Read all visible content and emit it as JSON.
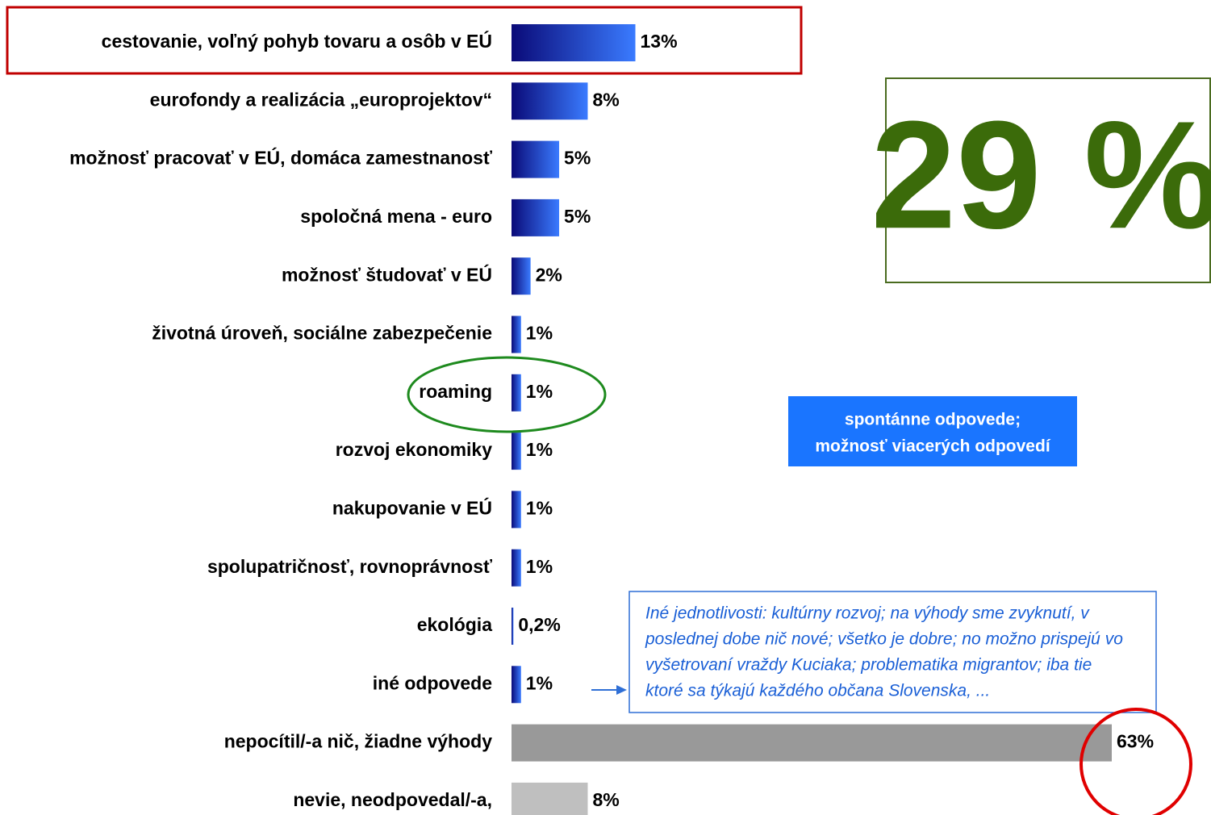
{
  "chart_data": {
    "type": "bar",
    "orientation": "horizontal",
    "categories": [
      "cestovanie, voľný pohyb tovaru a  osôb v  EÚ",
      "eurofondy a realizácia „europrojektov“",
      "možnosť pracovať v  EÚ, domáca zamestnanosť",
      "spoločná mena - euro",
      "možnosť študovať v  EÚ",
      "životná úroveň,  sociálne zabezpečenie",
      "roaming",
      "rozvoj ekonomiky",
      "nakupovanie v  EÚ",
      "spolupatričnosť, rovnoprávnosť",
      "ekológia",
      "iné odpovede",
      "nepocítil/-a nič, žiadne výhody",
      "nevie, neodpovedal/-a,"
    ],
    "values": [
      13,
      8,
      5,
      5,
      2,
      1,
      1,
      1,
      1,
      1,
      0.2,
      1,
      63,
      8
    ],
    "value_labels": [
      "13%",
      "8%",
      "5%",
      "5%",
      "2%",
      "1%",
      "1%",
      "1%",
      "1%",
      "1%",
      "0,2%",
      "1%",
      "63%",
      "8%"
    ],
    "colors": [
      "#3a7bff",
      "#3a7bff",
      "#3a7bff",
      "#3a7bff",
      "#3a7bff",
      "#3a7bff",
      "#3a7bff",
      "#3a7bff",
      "#3a7bff",
      "#3a7bff",
      "#3a7bff",
      "#3a7bff",
      "#999999",
      "#bfbfbf"
    ],
    "gradient": [
      true,
      true,
      true,
      true,
      true,
      true,
      true,
      true,
      true,
      true,
      true,
      true,
      false,
      false
    ],
    "gradient_from": "#0a0a78",
    "annotations": {
      "headline": "29 %",
      "note_box": [
        "spontánne odpovede;",
        "možnosť viacerých odpovedí"
      ],
      "other_answers": [
        "Iné jednotlivosti: kultúrny rozvoj;  na výhody sme zvyknutí, v",
        "poslednej dobe nič nové; všetko je dobre; no možno prispejú vo",
        "vyšetrovaní vraždy Kuciaka; problematika migrantov; iba tie",
        "ktoré sa týkajú každého občana Slovenska, ..."
      ]
    }
  }
}
